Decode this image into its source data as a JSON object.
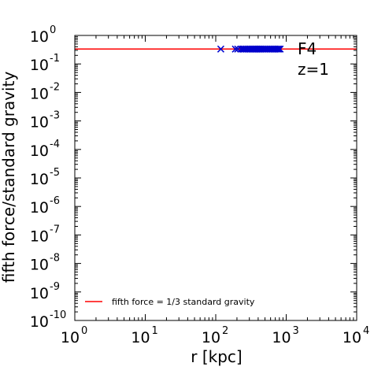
{
  "chart_data": {
    "type": "scatter",
    "xlabel": "r [kpc]",
    "ylabel": "fifth force/standard gravity",
    "x_scale": "log",
    "y_scale": "log",
    "xlim": [
      1,
      10000
    ],
    "ylim": [
      1e-10,
      1
    ],
    "x_ticks": [
      {
        "base": "10",
        "exp": "0",
        "value": 1
      },
      {
        "base": "10",
        "exp": "1",
        "value": 10
      },
      {
        "base": "10",
        "exp": "2",
        "value": 100
      },
      {
        "base": "10",
        "exp": "3",
        "value": 1000
      },
      {
        "base": "10",
        "exp": "4",
        "value": 10000
      }
    ],
    "y_ticks": [
      {
        "base": "10",
        "exp": "0",
        "value": 1
      },
      {
        "base": "10",
        "exp": "-1",
        "value": 0.1
      },
      {
        "base": "10",
        "exp": "-2",
        "value": 0.01
      },
      {
        "base": "10",
        "exp": "-3",
        "value": 0.001
      },
      {
        "base": "10",
        "exp": "-4",
        "value": 0.0001
      },
      {
        "base": "10",
        "exp": "-5",
        "value": 1e-05
      },
      {
        "base": "10",
        "exp": "-6",
        "value": 1e-06
      },
      {
        "base": "10",
        "exp": "-7",
        "value": 1e-07
      },
      {
        "base": "10",
        "exp": "-8",
        "value": 1e-08
      },
      {
        "base": "10",
        "exp": "-9",
        "value": 1e-09
      },
      {
        "base": "10",
        "exp": "-10",
        "value": 1e-10
      }
    ],
    "reference_line": {
      "name": "fifth force = 1/3 standard gravity",
      "y": 0.3333,
      "color": "#ff0000"
    },
    "series": [
      {
        "marker": "x",
        "color": "#0000cc",
        "points": [
          [
            118,
            0.333
          ],
          [
            190,
            0.333
          ],
          [
            205,
            0.333
          ],
          [
            228,
            0.333
          ],
          [
            240,
            0.333
          ],
          [
            252,
            0.333
          ],
          [
            262,
            0.333
          ],
          [
            275,
            0.333
          ],
          [
            288,
            0.333
          ],
          [
            300,
            0.333
          ],
          [
            312,
            0.333
          ],
          [
            325,
            0.333
          ],
          [
            340,
            0.333
          ],
          [
            355,
            0.333
          ],
          [
            370,
            0.333
          ],
          [
            385,
            0.333
          ],
          [
            400,
            0.333
          ],
          [
            418,
            0.333
          ],
          [
            435,
            0.333
          ],
          [
            455,
            0.333
          ],
          [
            475,
            0.333
          ],
          [
            495,
            0.333
          ],
          [
            515,
            0.333
          ],
          [
            540,
            0.333
          ],
          [
            565,
            0.333
          ],
          [
            590,
            0.333
          ],
          [
            615,
            0.333
          ],
          [
            640,
            0.333
          ],
          [
            670,
            0.333
          ],
          [
            700,
            0.333
          ],
          [
            730,
            0.333
          ],
          [
            760,
            0.333
          ],
          [
            790,
            0.333
          ],
          [
            820,
            0.333
          ]
        ]
      }
    ],
    "annotations": [
      "F4",
      "z=1"
    ],
    "legend_position": "lower-center"
  }
}
